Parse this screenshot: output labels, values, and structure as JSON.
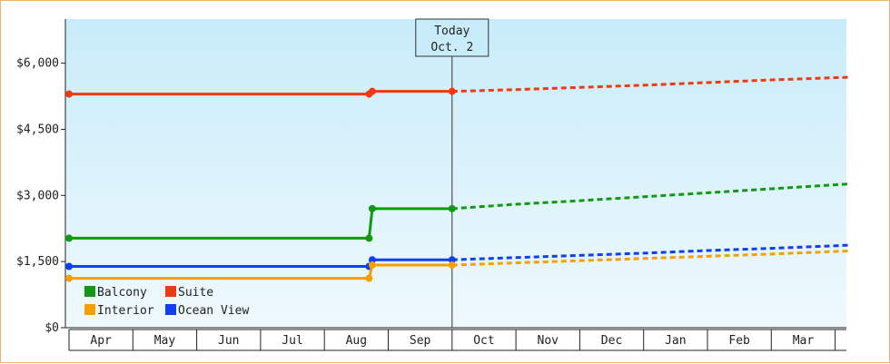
{
  "chart_data": {
    "type": "line",
    "title": "",
    "xlabel": "",
    "ylabel": "",
    "x_categories": [
      "Apr",
      "May",
      "Jun",
      "Jul",
      "Aug",
      "Sep",
      "Oct",
      "Nov",
      "Dec",
      "Jan",
      "Feb",
      "Mar"
    ],
    "y_ticks": [
      "$0",
      "$1,500",
      "$3,000",
      "$4,500",
      "$6,000"
    ],
    "y_tick_values": [
      0,
      1500,
      3000,
      4500,
      6000
    ],
    "ylim": [
      0,
      7000
    ],
    "grid": false,
    "background": "gradient light blue",
    "today_marker": {
      "line1": "Today",
      "line2": "Oct. 2",
      "x_month": 6.0
    },
    "legend": {
      "placement": "bottom-left",
      "columns": 2
    },
    "series": [
      {
        "name": "Suite",
        "color": "#ee3a10",
        "historical": [
          [
            0.0,
            5300
          ],
          [
            4.7,
            5300
          ],
          [
            4.75,
            5360
          ],
          [
            6.0,
            5360
          ]
        ],
        "historical_markers": [
          [
            0.0,
            5300
          ],
          [
            4.7,
            5300
          ],
          [
            4.75,
            5360
          ],
          [
            6.0,
            5360
          ]
        ],
        "forecast": [
          [
            6.0,
            5360
          ],
          [
            7.0,
            5400
          ],
          [
            8.0,
            5450
          ],
          [
            9.0,
            5500
          ],
          [
            10.0,
            5560
          ],
          [
            11.0,
            5620
          ],
          [
            12.2,
            5680
          ]
        ]
      },
      {
        "name": "Balcony",
        "color": "#119911",
        "historical": [
          [
            0.0,
            2030
          ],
          [
            4.7,
            2030
          ],
          [
            4.75,
            2700
          ],
          [
            6.0,
            2700
          ]
        ],
        "historical_markers": [
          [
            0.0,
            2030
          ],
          [
            4.7,
            2030
          ],
          [
            4.75,
            2700
          ],
          [
            6.0,
            2700
          ]
        ],
        "forecast": [
          [
            6.0,
            2700
          ],
          [
            7.0,
            2800
          ],
          [
            8.0,
            2880
          ],
          [
            9.0,
            2970
          ],
          [
            10.0,
            3060
          ],
          [
            11.0,
            3150
          ],
          [
            12.2,
            3260
          ]
        ]
      },
      {
        "name": "Ocean View",
        "color": "#1040ee",
        "historical": [
          [
            0.0,
            1390
          ],
          [
            4.7,
            1390
          ],
          [
            4.75,
            1540
          ],
          [
            6.0,
            1540
          ]
        ],
        "historical_markers": [
          [
            0.0,
            1390
          ],
          [
            4.7,
            1390
          ],
          [
            4.75,
            1540
          ],
          [
            6.0,
            1540
          ]
        ],
        "forecast": [
          [
            6.0,
            1540
          ],
          [
            7.0,
            1590
          ],
          [
            8.0,
            1640
          ],
          [
            9.0,
            1690
          ],
          [
            10.0,
            1750
          ],
          [
            11.0,
            1800
          ],
          [
            12.2,
            1870
          ]
        ]
      },
      {
        "name": "Interior",
        "color": "#f5a000",
        "historical": [
          [
            0.0,
            1120
          ],
          [
            4.7,
            1120
          ],
          [
            4.75,
            1420
          ],
          [
            6.0,
            1420
          ]
        ],
        "historical_markers": [
          [
            0.0,
            1120
          ],
          [
            4.7,
            1120
          ],
          [
            4.75,
            1420
          ],
          [
            6.0,
            1420
          ]
        ],
        "forecast": [
          [
            6.0,
            1420
          ],
          [
            7.0,
            1470
          ],
          [
            8.0,
            1520
          ],
          [
            9.0,
            1570
          ],
          [
            10.0,
            1620
          ],
          [
            11.0,
            1670
          ],
          [
            12.2,
            1740
          ]
        ]
      }
    ],
    "legend_order": [
      "Balcony",
      "Suite",
      "Interior",
      "Ocean View"
    ]
  }
}
